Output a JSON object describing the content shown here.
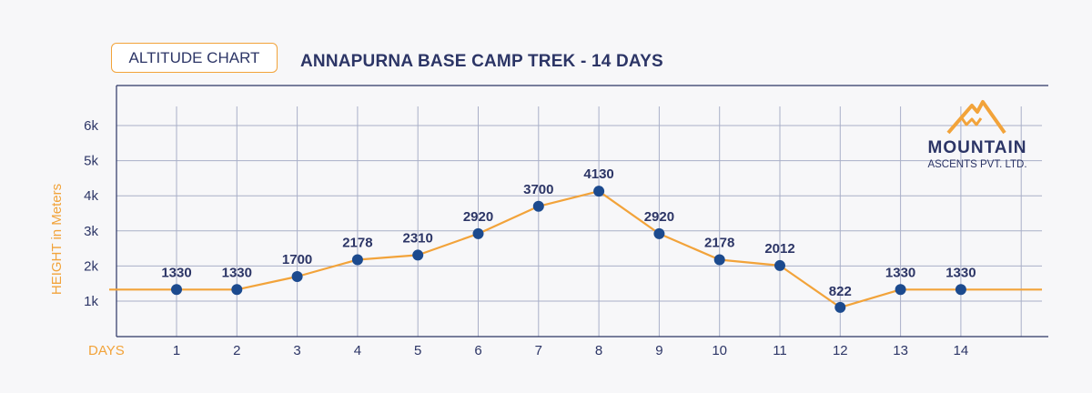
{
  "badge": "ALTITUDE CHART",
  "title": "ANNAPURNA BASE CAMP TREK - 14 DAYS",
  "brand": {
    "name": "MOUNTAIN",
    "subtitle": "ASCENTS PVT. LTD.",
    "logo_icon": "mountain-peaks-logo",
    "accent_color": "#f2a33a",
    "text_color": "#2c3566"
  },
  "chart_data": {
    "type": "line",
    "title": "ANNAPURNA BASE CAMP TREK - 14 DAYS",
    "xlabel": "DAYS",
    "ylabel": "HEIGHT in Meters",
    "x": [
      1,
      2,
      3,
      4,
      5,
      6,
      7,
      8,
      9,
      10,
      11,
      12,
      13,
      14
    ],
    "x_tick_labels": [
      "1",
      "2",
      "3",
      "4",
      "5",
      "6",
      "7",
      "8",
      "9",
      "10",
      "11",
      "12",
      "13",
      "14"
    ],
    "y_ticks": [
      1000,
      2000,
      3000,
      4000,
      5000,
      6000
    ],
    "y_tick_labels": [
      "1k",
      "2k",
      "3k",
      "4k",
      "5k",
      "6k"
    ],
    "series": [
      {
        "values": [
          1330,
          1330,
          1700,
          2178,
          2310,
          2920,
          3700,
          4130,
          2920,
          2178,
          2012,
          822,
          1330,
          1330
        ],
        "data_labels": [
          "1330",
          "1330",
          "1700",
          "2178",
          "2310",
          "2920",
          "3700",
          "4130",
          "2920",
          "2178",
          "2012",
          "822",
          "1330",
          "1330"
        ]
      }
    ],
    "line_color": "#f2a33a",
    "marker_color": "#1c4a8e",
    "grid": true,
    "ylim": [
      0,
      6700
    ]
  }
}
